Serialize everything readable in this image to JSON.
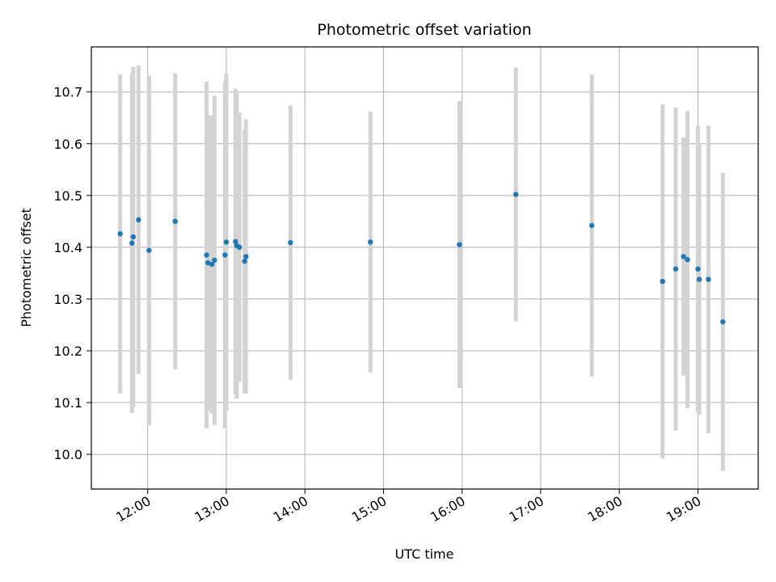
{
  "chart_data": {
    "type": "scatter",
    "title": "Photometric offset variation",
    "xlabel": "UTC time",
    "ylabel": "Photometric offset",
    "x_axis_type": "time",
    "xlim": [
      "11:17",
      "19:46"
    ],
    "ylim": [
      9.933,
      10.787
    ],
    "grid": true,
    "colors": {
      "points": "#1f77b4",
      "errorbars": "#d3d3d3",
      "grid": "#b0b0b0"
    },
    "x_ticks": [
      "12:00",
      "13:00",
      "14:00",
      "15:00",
      "16:00",
      "17:00",
      "18:00",
      "19:00"
    ],
    "y_ticks": [
      "10.0",
      "10.1",
      "10.2",
      "10.3",
      "10.4",
      "10.5",
      "10.6",
      "10.7"
    ],
    "series": [
      {
        "marker": "dot",
        "points": [
          {
            "x": "11:39",
            "y": 10.426,
            "err": 0.308
          },
          {
            "x": "11:48",
            "y": 10.408,
            "err": 0.328
          },
          {
            "x": "11:49",
            "y": 10.42,
            "err": 0.328
          },
          {
            "x": "11:53",
            "y": 10.453,
            "err": 0.298
          },
          {
            "x": "12:01",
            "y": 10.394,
            "err": 0.338
          },
          {
            "x": "12:21",
            "y": 10.45,
            "err": 0.286
          },
          {
            "x": "12:45",
            "y": 10.385,
            "err": 0.335
          },
          {
            "x": "12:46",
            "y": 10.37,
            "err": 0.285
          },
          {
            "x": "12:49",
            "y": 10.367,
            "err": 0.288
          },
          {
            "x": "12:51",
            "y": 10.375,
            "err": 0.318
          },
          {
            "x": "12:59",
            "y": 10.385,
            "err": 0.335
          },
          {
            "x": "13:00",
            "y": 10.41,
            "err": 0.326
          },
          {
            "x": "13:07",
            "y": 10.411,
            "err": 0.295
          },
          {
            "x": "13:08",
            "y": 10.403,
            "err": 0.295
          },
          {
            "x": "13:10",
            "y": 10.4,
            "err": 0.26
          },
          {
            "x": "13:14",
            "y": 10.373,
            "err": 0.255
          },
          {
            "x": "13:15",
            "y": 10.382,
            "err": 0.265
          },
          {
            "x": "13:49",
            "y": 10.409,
            "err": 0.265
          },
          {
            "x": "14:50",
            "y": 10.41,
            "err": 0.252
          },
          {
            "x": "15:58",
            "y": 10.405,
            "err": 0.277
          },
          {
            "x": "16:41",
            "y": 10.502,
            "err": 0.245
          },
          {
            "x": "17:39",
            "y": 10.442,
            "err": 0.292
          },
          {
            "x": "18:33",
            "y": 10.334,
            "err": 0.342
          },
          {
            "x": "18:43",
            "y": 10.358,
            "err": 0.312
          },
          {
            "x": "18:49",
            "y": 10.382,
            "err": 0.23
          },
          {
            "x": "18:52",
            "y": 10.376,
            "err": 0.287
          },
          {
            "x": "19:00",
            "y": 10.358,
            "err": 0.277
          },
          {
            "x": "19:01",
            "y": 10.338,
            "err": 0.262
          },
          {
            "x": "19:08",
            "y": 10.338,
            "err": 0.297
          },
          {
            "x": "19:19",
            "y": 10.256,
            "err": 0.288
          }
        ]
      }
    ]
  }
}
